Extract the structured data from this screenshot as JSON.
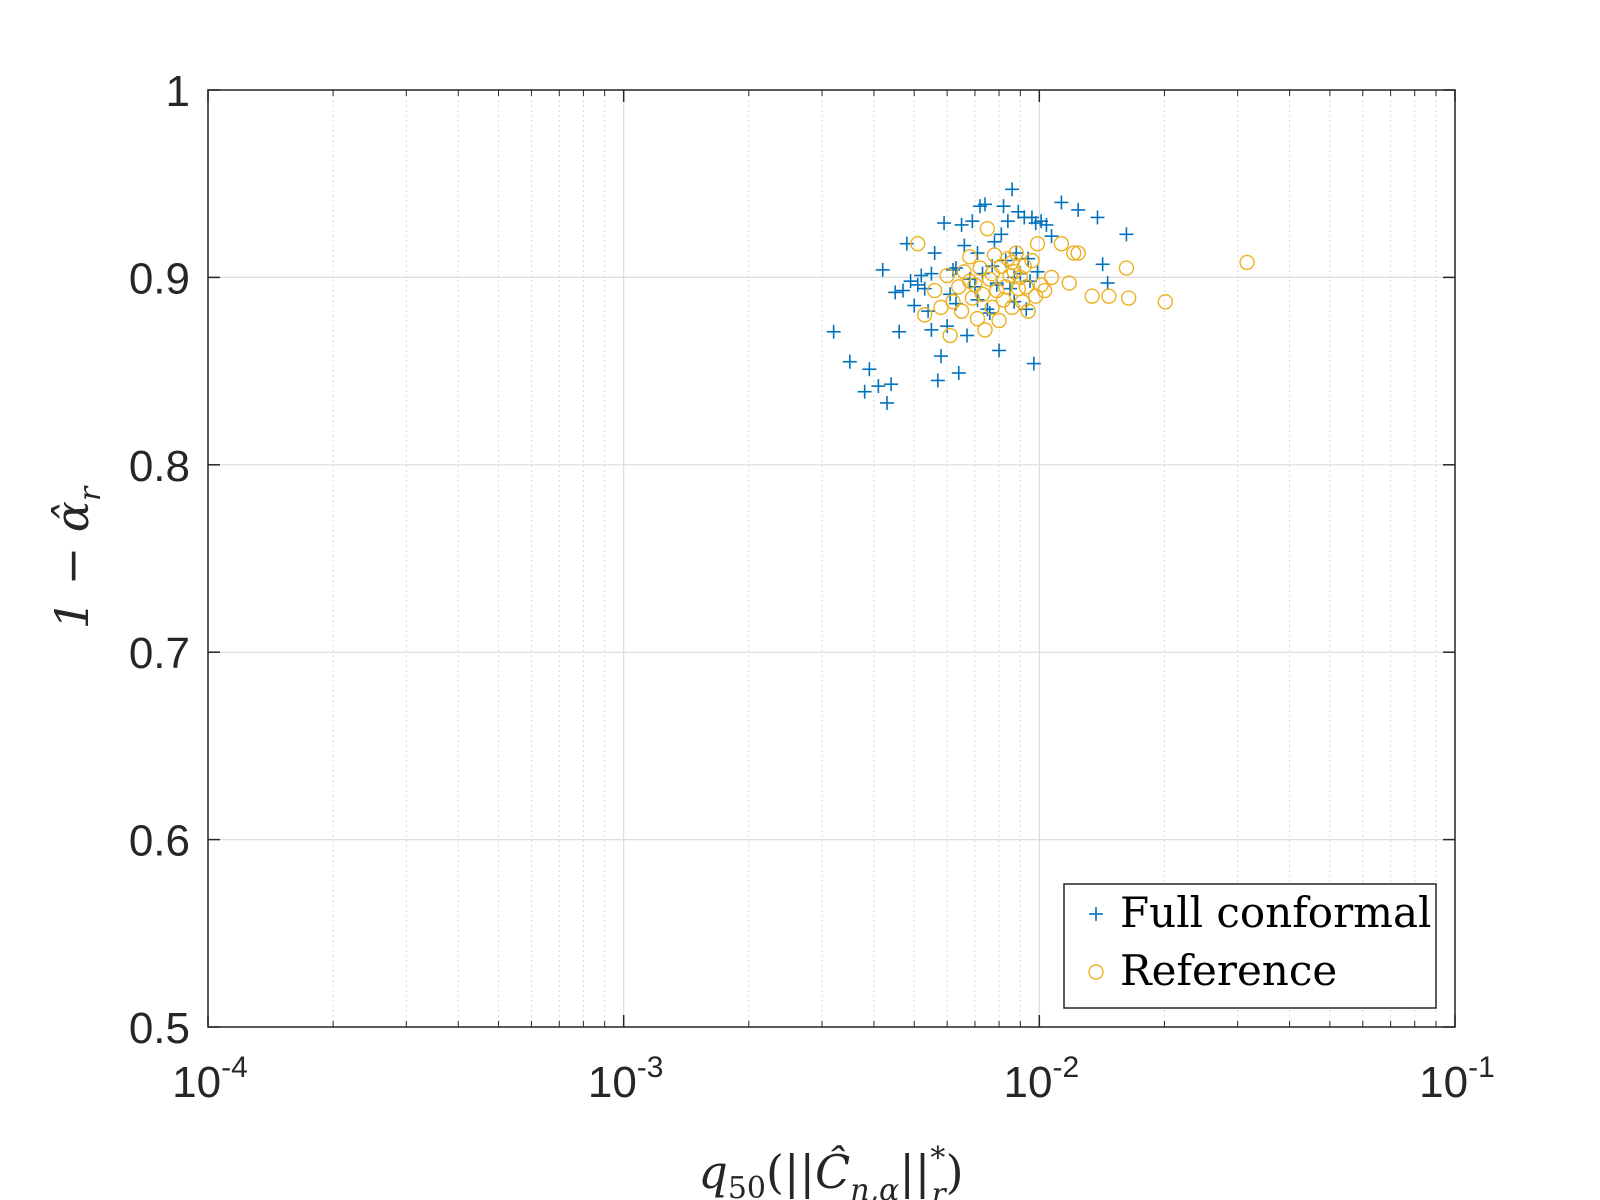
{
  "chart_data": {
    "type": "scatter",
    "title": "",
    "xscale": "log",
    "xlim": [
      0.0001,
      0.1
    ],
    "ylim": [
      0.5,
      1.0
    ],
    "grid": true,
    "xlabel": "q50(||Ĉn,α||*r)",
    "xlabel_parts": {
      "q": "q",
      "sub": "50",
      "open": "(||",
      "C": "Ĉ",
      "csub": "n,α",
      "close": "||",
      "sup": "*",
      "rsub": "r",
      "end": ")"
    },
    "ylabel": "1 − α̂r",
    "ylabel_parts": {
      "main": "1 − α̂",
      "sub": "r"
    },
    "x_ticks": [
      {
        "base": "10",
        "exp": "-4",
        "value": 0.0001
      },
      {
        "base": "10",
        "exp": "-3",
        "value": 0.001
      },
      {
        "base": "10",
        "exp": "-2",
        "value": 0.01
      },
      {
        "base": "10",
        "exp": "-1",
        "value": 0.1
      }
    ],
    "y_ticks": [
      {
        "label": "0.5",
        "value": 0.5
      },
      {
        "label": "0.6",
        "value": 0.6
      },
      {
        "label": "0.7",
        "value": 0.7
      },
      {
        "label": "0.8",
        "value": 0.8
      },
      {
        "label": "0.9",
        "value": 0.9
      },
      {
        "label": "1",
        "value": 1.0
      }
    ],
    "legend_position": "bottom-right",
    "series": [
      {
        "name": "Full conformal",
        "marker": "plus",
        "color": "#0072BD",
        "points": [
          [
            0.0032,
            0.871
          ],
          [
            0.0035,
            0.855
          ],
          [
            0.0038,
            0.839
          ],
          [
            0.0039,
            0.851
          ],
          [
            0.0041,
            0.842
          ],
          [
            0.0042,
            0.904
          ],
          [
            0.0043,
            0.833
          ],
          [
            0.0044,
            0.843
          ],
          [
            0.0045,
            0.892
          ],
          [
            0.0046,
            0.871
          ],
          [
            0.0047,
            0.893
          ],
          [
            0.0048,
            0.918
          ],
          [
            0.0049,
            0.898
          ],
          [
            0.005,
            0.885
          ],
          [
            0.0051,
            0.896
          ],
          [
            0.0052,
            0.901
          ],
          [
            0.0053,
            0.894
          ],
          [
            0.0054,
            0.882
          ],
          [
            0.0055,
            0.872
          ],
          [
            0.0056,
            0.913
          ],
          [
            0.0057,
            0.845
          ],
          [
            0.0058,
            0.858
          ],
          [
            0.0059,
            0.929
          ],
          [
            0.006,
            0.874
          ],
          [
            0.0061,
            0.891
          ],
          [
            0.0062,
            0.904
          ],
          [
            0.0063,
            0.886
          ],
          [
            0.0064,
            0.849
          ],
          [
            0.0065,
            0.928
          ],
          [
            0.0066,
            0.917
          ],
          [
            0.0067,
            0.869
          ],
          [
            0.0068,
            0.899
          ],
          [
            0.0069,
            0.93
          ],
          [
            0.007,
            0.895
          ],
          [
            0.0071,
            0.913
          ],
          [
            0.0072,
            0.938
          ],
          [
            0.0073,
            0.902
          ],
          [
            0.0074,
            0.939
          ],
          [
            0.0075,
            0.883
          ],
          [
            0.0076,
            0.881
          ],
          [
            0.0077,
            0.906
          ],
          [
            0.0078,
            0.919
          ],
          [
            0.0079,
            0.897
          ],
          [
            0.008,
            0.861
          ],
          [
            0.0081,
            0.923
          ],
          [
            0.0082,
            0.938
          ],
          [
            0.0083,
            0.909
          ],
          [
            0.0084,
            0.93
          ],
          [
            0.0085,
            0.894
          ],
          [
            0.0086,
            0.947
          ],
          [
            0.0087,
            0.887
          ],
          [
            0.0088,
            0.913
          ],
          [
            0.0089,
            0.935
          ],
          [
            0.009,
            0.902
          ],
          [
            0.0092,
            0.932
          ],
          [
            0.0094,
            0.91
          ],
          [
            0.0095,
            0.898
          ],
          [
            0.0096,
            0.932
          ],
          [
            0.0097,
            0.854
          ],
          [
            0.0098,
            0.929
          ],
          [
            0.0099,
            0.903
          ],
          [
            0.0101,
            0.93
          ],
          [
            0.0104,
            0.928
          ],
          [
            0.0107,
            0.922
          ],
          [
            0.0113,
            0.94
          ],
          [
            0.0124,
            0.936
          ],
          [
            0.0138,
            0.932
          ],
          [
            0.0142,
            0.907
          ],
          [
            0.0146,
            0.897
          ],
          [
            0.0162,
            0.923
          ],
          [
            0.0055,
            0.902
          ],
          [
            0.0063,
            0.905
          ],
          [
            0.0071,
            0.888
          ],
          [
            0.0079,
            0.896
          ],
          [
            0.0087,
            0.9
          ],
          [
            0.0093,
            0.883
          ]
        ]
      },
      {
        "name": "Reference",
        "marker": "circle",
        "color": "#EDB120",
        "points": [
          [
            0.0051,
            0.918
          ],
          [
            0.0053,
            0.88
          ],
          [
            0.0056,
            0.893
          ],
          [
            0.0058,
            0.884
          ],
          [
            0.006,
            0.901
          ],
          [
            0.0061,
            0.869
          ],
          [
            0.0062,
            0.887
          ],
          [
            0.0064,
            0.895
          ],
          [
            0.0065,
            0.882
          ],
          [
            0.0066,
            0.903
          ],
          [
            0.0068,
            0.911
          ],
          [
            0.0069,
            0.889
          ],
          [
            0.007,
            0.896
          ],
          [
            0.0071,
            0.878
          ],
          [
            0.0072,
            0.905
          ],
          [
            0.0073,
            0.891
          ],
          [
            0.0074,
            0.872
          ],
          [
            0.0075,
            0.926
          ],
          [
            0.0076,
            0.899
          ],
          [
            0.0077,
            0.884
          ],
          [
            0.0078,
            0.912
          ],
          [
            0.0079,
            0.893
          ],
          [
            0.008,
            0.877
          ],
          [
            0.0081,
            0.906
          ],
          [
            0.0082,
            0.888
          ],
          [
            0.0083,
            0.895
          ],
          [
            0.0084,
            0.91
          ],
          [
            0.0085,
            0.901
          ],
          [
            0.0086,
            0.884
          ],
          [
            0.0087,
            0.903
          ],
          [
            0.0088,
            0.913
          ],
          [
            0.0089,
            0.894
          ],
          [
            0.009,
            0.9
          ],
          [
            0.0091,
            0.887
          ],
          [
            0.0092,
            0.906
          ],
          [
            0.0093,
            0.895
          ],
          [
            0.0094,
            0.882
          ],
          [
            0.0096,
            0.909
          ],
          [
            0.0098,
            0.89
          ],
          [
            0.0099,
            0.918
          ],
          [
            0.0101,
            0.896
          ],
          [
            0.0103,
            0.893
          ],
          [
            0.0107,
            0.9
          ],
          [
            0.0113,
            0.918
          ],
          [
            0.0118,
            0.897
          ],
          [
            0.0121,
            0.913
          ],
          [
            0.0124,
            0.913
          ],
          [
            0.0134,
            0.89
          ],
          [
            0.0147,
            0.89
          ],
          [
            0.0162,
            0.905
          ],
          [
            0.0164,
            0.889
          ],
          [
            0.0201,
            0.887
          ],
          [
            0.0316,
            0.908
          ],
          [
            0.0068,
            0.898
          ],
          [
            0.0077,
            0.902
          ],
          [
            0.0086,
            0.908
          ]
        ]
      }
    ]
  }
}
